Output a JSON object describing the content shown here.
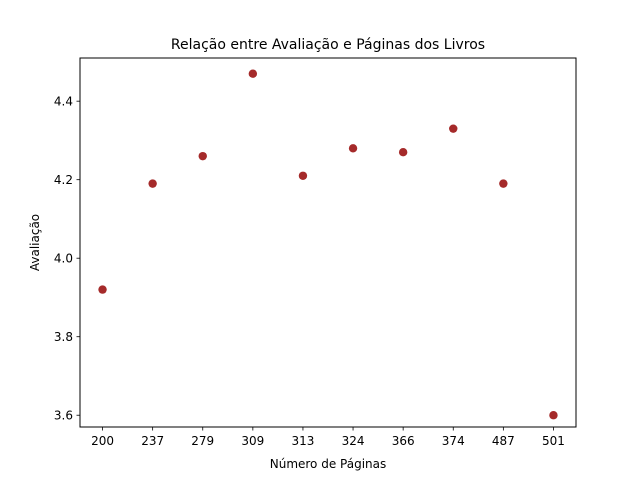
{
  "chart_data": {
    "type": "scatter",
    "title": "Relação entre Avaliação e Páginas dos Livros",
    "xlabel": "Número de Páginas",
    "ylabel": "Avaliação",
    "categories": [
      "200",
      "237",
      "279",
      "309",
      "313",
      "324",
      "366",
      "374",
      "487",
      "501"
    ],
    "values": [
      3.92,
      4.19,
      4.26,
      4.47,
      4.21,
      4.28,
      4.27,
      4.33,
      4.19,
      3.6
    ],
    "ylim": [
      3.57,
      4.51
    ],
    "yticks": [
      3.6,
      3.8,
      4.0,
      4.2,
      4.4
    ],
    "ytick_labels": [
      "3.6",
      "3.8",
      "4.0",
      "4.2",
      "4.4"
    ],
    "marker_color": "#a52a2a",
    "grid": false,
    "legend": "none"
  }
}
